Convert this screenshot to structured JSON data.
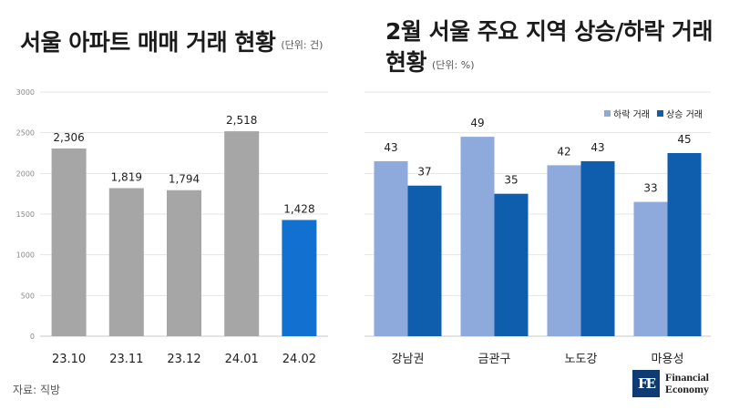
{
  "left_panel": {
    "title": "서울 아파트 매매 거래 현황",
    "unit": "(단위: 건)"
  },
  "right_panel": {
    "title": "2월 서울 주요 지역 상승/하락 거래 현황",
    "unit": "(단위: %)"
  },
  "footer": {
    "source": "자료: 직방",
    "logo_mark": "FE",
    "logo_line1": "Financial",
    "logo_line2": "Economy"
  },
  "colors": {
    "gray_bar": "#a6a6a6",
    "highlight_bar": "#1270d0",
    "falling": "#8ea9db",
    "rising": "#0f5eae",
    "grid": "#e4e4e4",
    "text": "#1e1e1e"
  },
  "chart_data": [
    {
      "type": "bar",
      "title": "서울 아파트 매매 거래 현황",
      "categories": [
        "23.10",
        "23.11",
        "23.12",
        "24.01",
        "24.02"
      ],
      "values": [
        2306,
        1819,
        1794,
        2518,
        1428
      ],
      "data_labels": [
        "2,306",
        "1,819",
        "1,794",
        "2,518",
        "1,428"
      ],
      "highlight_index": 4,
      "ylim": [
        0,
        3000
      ],
      "yticks": [
        0,
        500,
        1000,
        1500,
        2000,
        2500,
        3000
      ],
      "grid": true
    },
    {
      "type": "bar",
      "title": "2월 서울 주요 지역 상승/하락 거래 현황",
      "categories": [
        "강남권",
        "금관구",
        "노도강",
        "마용성"
      ],
      "series": [
        {
          "name": "하락 거래",
          "values": [
            43,
            49,
            42,
            33
          ]
        },
        {
          "name": "상승 거래",
          "values": [
            37,
            35,
            43,
            45
          ]
        }
      ],
      "ylim": [
        0,
        60
      ],
      "grid": true,
      "legend_position": "top-right"
    }
  ]
}
